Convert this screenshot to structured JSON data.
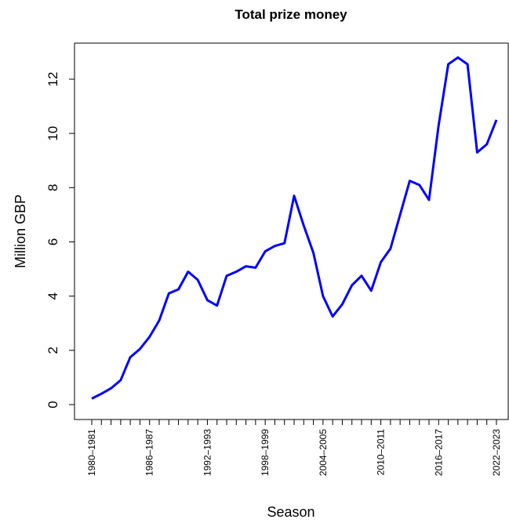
{
  "chart_data": {
    "type": "line",
    "title": "Total prize money",
    "x_label": "Season",
    "y_label": "Million GBP",
    "categories": [
      "1980–1981",
      null,
      null,
      null,
      null,
      null,
      "1986–1987",
      null,
      null,
      null,
      null,
      null,
      "1992–1993",
      null,
      null,
      null,
      null,
      null,
      "1998–1999",
      null,
      null,
      null,
      null,
      null,
      "2004–2005",
      null,
      null,
      null,
      null,
      null,
      "2010–2011",
      null,
      null,
      null,
      null,
      null,
      "2016–2017",
      null,
      null,
      null,
      null,
      null,
      "2022–2023"
    ],
    "series": [
      {
        "name": "Total prize money",
        "color": "#0000ff",
        "values": [
          0.22,
          0.4,
          0.6,
          0.9,
          1.75,
          2.05,
          2.5,
          3.1,
          4.1,
          4.25,
          4.9,
          4.6,
          3.85,
          3.65,
          4.75,
          4.9,
          5.1,
          5.05,
          5.65,
          5.85,
          5.95,
          7.7,
          6.6,
          5.6,
          4.0,
          3.25,
          3.7,
          4.4,
          4.75,
          4.2,
          5.25,
          5.75,
          7.0,
          8.25,
          8.1,
          7.55,
          10.3,
          12.55,
          12.8,
          12.55,
          9.3,
          9.6,
          10.5
        ]
      }
    ],
    "ylim": [
      -0.55,
      13.33
    ],
    "yticks": [
      0,
      2,
      4,
      6,
      8,
      10,
      12
    ]
  }
}
